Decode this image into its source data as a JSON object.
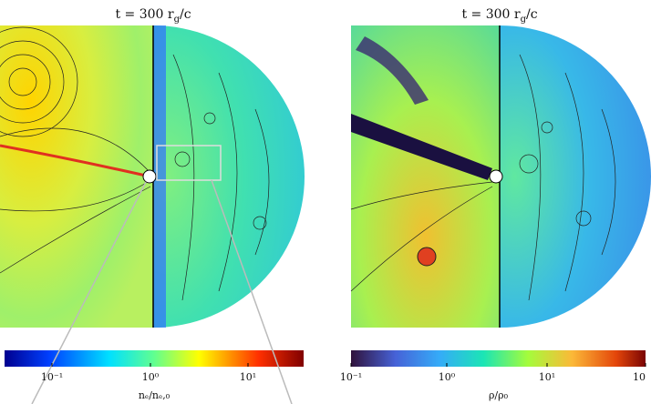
{
  "panels": [
    {
      "title": {
        "prefix": "t = 300 r",
        "sub": "g",
        "suffix": "/c"
      },
      "colorbar": {
        "ticks": [
          "10⁻¹",
          "10⁰",
          "10¹"
        ],
        "label": "nₑ/nₑ,₀"
      }
    },
    {
      "title": {
        "prefix": "t = 300 r",
        "sub": "g",
        "suffix": "/c"
      },
      "colorbar": {
        "ticks": [
          "10⁻¹",
          "10⁰",
          "10¹",
          "10"
        ],
        "label": "ρ/ρ₀"
      }
    }
  ]
}
